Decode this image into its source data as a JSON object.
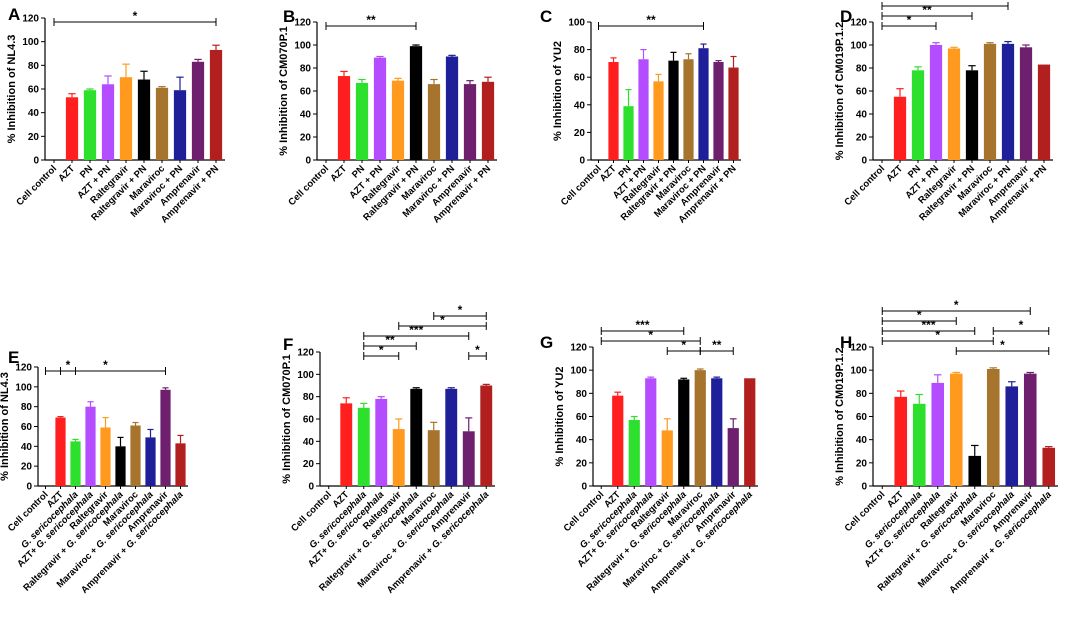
{
  "chart_data": [
    {
      "panel": "A",
      "type": "bar",
      "ylabel": "% Inhibition of NL4.3",
      "ylim": [
        0,
        120
      ],
      "yticks": [
        0,
        20,
        40,
        60,
        80,
        100,
        120
      ],
      "yticklabels": [
        "0",
        "20",
        "40",
        "60",
        "80",
        "100",
        "120"
      ],
      "categories": [
        "Cell control",
        "AZT",
        "PN",
        "AZT + PN",
        "Raltegravir",
        "Raltegravir + PN",
        "Maraviroc",
        "Maraviroc + PN",
        "Amprenavir",
        "Amprenavir + PN"
      ],
      "italic": [],
      "values": [
        0,
        53,
        59,
        64,
        70,
        68,
        61,
        59,
        83,
        93
      ],
      "errors": [
        0,
        3,
        1,
        7,
        11,
        7,
        1,
        11,
        2,
        4
      ],
      "colors": [
        "#ff1f1f",
        "#ff1f1f",
        "#2ee02e",
        "#b44cff",
        "#ff9a1f",
        "#000000",
        "#a6742c",
        "#1f1f9a",
        "#6e1f6e",
        "#b21f1f"
      ],
      "significance": [
        {
          "from": 0,
          "to": 9,
          "level": 1,
          "label": "*"
        }
      ]
    },
    {
      "panel": "B",
      "type": "bar",
      "ylabel": "% Inhibition of CM070P.1",
      "ylim": [
        0,
        120
      ],
      "yticks": [
        0,
        20,
        40,
        60,
        80,
        100,
        120
      ],
      "yticklabels": [
        "0",
        "20",
        "40",
        "60",
        "80",
        "100",
        "120"
      ],
      "categories": [
        "Cell control",
        "AZT",
        "PN",
        "AZT + PN",
        "Raltegravir",
        "Raltegravir + PN",
        "Maraviroc",
        "Maraviroc + PN",
        "Amprenavir",
        "Amprenavir + PN"
      ],
      "italic": [],
      "values": [
        0,
        73,
        67,
        89,
        69,
        99,
        66,
        90,
        66,
        68
      ],
      "errors": [
        0,
        4,
        3,
        1,
        2,
        1,
        4,
        1,
        3,
        4
      ],
      "colors": [
        "#ff1f1f",
        "#ff1f1f",
        "#2ee02e",
        "#b44cff",
        "#ff9a1f",
        "#000000",
        "#a6742c",
        "#1f1f9a",
        "#6e1f6e",
        "#b21f1f"
      ],
      "significance": [
        {
          "from": 0,
          "to": 5,
          "level": 1,
          "label": "**"
        }
      ]
    },
    {
      "panel": "C",
      "type": "bar",
      "ylabel": "% Inhibition of YU2",
      "ylim": [
        0,
        100
      ],
      "yticks": [
        0,
        20,
        40,
        60,
        80,
        100
      ],
      "yticklabels": [
        "0",
        "20",
        "40",
        "60",
        "80",
        "100"
      ],
      "categories": [
        "Cell control",
        "AZT",
        "PN",
        "AZT + PN",
        "Raltegravir",
        "Raltegravir + PN",
        "Maraviroc",
        "Maraviroc + PN",
        "Amprenavir",
        "Amprenavir + PN"
      ],
      "italic": [],
      "values": [
        0,
        71,
        39,
        73,
        57,
        72,
        73,
        81,
        71,
        67
      ],
      "errors": [
        0,
        3,
        12,
        7,
        5,
        6,
        4,
        3,
        1,
        8
      ],
      "colors": [
        "#ff1f1f",
        "#ff1f1f",
        "#2ee02e",
        "#b44cff",
        "#ff9a1f",
        "#000000",
        "#a6742c",
        "#1f1f9a",
        "#6e1f6e",
        "#b21f1f"
      ],
      "significance": [
        {
          "from": 0,
          "to": 7,
          "level": 1,
          "label": "**"
        }
      ]
    },
    {
      "panel": "D",
      "type": "bar",
      "ylabel": "% Inhibition of CM019P.1.2",
      "ylim": [
        0,
        120
      ],
      "yticks": [
        0,
        20,
        40,
        60,
        80,
        100,
        120
      ],
      "yticklabels": [
        "0",
        "20",
        "40",
        "60",
        "80",
        "100",
        "120"
      ],
      "categories": [
        "Cell control",
        "AZT",
        "PN",
        "AZT + PN",
        "Raltegravir",
        "Raltegravir + PN",
        "Maraviroc",
        "Maraviroc + PN",
        "Amprenavir",
        "Amprenavir + PN"
      ],
      "italic": [],
      "values": [
        0,
        55,
        78,
        100,
        97,
        78,
        101,
        101,
        98,
        83
      ],
      "errors": [
        0,
        7,
        3,
        2,
        1,
        4,
        1,
        2,
        2,
        0
      ],
      "colors": [
        "#ff1f1f",
        "#ff1f1f",
        "#2ee02e",
        "#b44cff",
        "#ff9a1f",
        "#000000",
        "#a6742c",
        "#1f1f9a",
        "#6e1f6e",
        "#b21f1f"
      ],
      "significance": [
        {
          "from": 0,
          "to": 3,
          "level": 1,
          "label": "*"
        },
        {
          "from": 0,
          "to": 5,
          "level": 2,
          "label": "**"
        },
        {
          "from": 0,
          "to": 7,
          "level": 3,
          "label": "*"
        }
      ]
    },
    {
      "panel": "E",
      "type": "bar",
      "ylabel": "% Inhibition of NL4.3",
      "ylim": [
        0,
        120
      ],
      "yticks": [
        0,
        20,
        40,
        60,
        80,
        100,
        120
      ],
      "yticklabels": [
        "0",
        "20",
        "40",
        "60",
        "80",
        "100",
        "120"
      ],
      "categories": [
        "Cell control",
        "AZT",
        "G. sericocephala",
        "AZT+ G. sericocephala",
        "Raltegravir",
        "Raltegravir + G. sericocephala",
        "Maraviroc",
        "Maraviroc + G. sericocephala",
        "Amprenavir",
        "Amprenavir + G. sericocephala"
      ],
      "italic": [
        "G. sericocephala"
      ],
      "values": [
        0,
        69,
        45,
        80,
        59,
        40,
        61,
        49,
        97,
        43
      ],
      "errors": [
        0,
        1,
        2,
        5,
        10,
        9,
        3,
        8,
        2,
        8
      ],
      "colors": [
        "#ff1f1f",
        "#ff1f1f",
        "#2ee02e",
        "#b44cff",
        "#ff9a1f",
        "#000000",
        "#a6742c",
        "#1f1f9a",
        "#6e1f6e",
        "#b21f1f"
      ],
      "significance": [
        {
          "from": 1,
          "to": 2,
          "level": 1,
          "label": "*"
        },
        {
          "from": 0,
          "to": 8,
          "level": 1,
          "label": "*"
        }
      ]
    },
    {
      "panel": "F",
      "type": "bar",
      "ylabel": "% Inhibition of CM070P.1",
      "ylim": [
        0,
        120
      ],
      "yticks": [
        0,
        20,
        40,
        60,
        80,
        100,
        120
      ],
      "yticklabels": [
        "0",
        "20",
        "40",
        "60",
        "80",
        "100",
        "120"
      ],
      "categories": [
        "Cell control",
        "AZT",
        "G. sericocephala",
        "AZT+ G. sericocephala",
        "Raltegravir",
        "Raltegravir + G. sericocephala",
        "Maraviroc",
        "Maraviroc + G. sericocephala",
        "Amprenavir",
        "Amprenavir + G. sericocephala"
      ],
      "italic": [
        "G. sericocephala"
      ],
      "values": [
        0,
        74,
        70,
        78,
        51,
        87,
        50,
        87,
        49,
        90
      ],
      "errors": [
        0,
        5,
        4,
        2,
        9,
        1,
        7,
        1,
        12,
        1
      ],
      "colors": [
        "#ff1f1f",
        "#ff1f1f",
        "#2ee02e",
        "#b44cff",
        "#ff9a1f",
        "#000000",
        "#a6742c",
        "#1f1f9a",
        "#6e1f6e",
        "#b21f1f"
      ],
      "significance": [
        {
          "from": 2,
          "to": 4,
          "level": 1,
          "label": "*"
        },
        {
          "from": 2,
          "to": 5,
          "level": 2,
          "label": "**"
        },
        {
          "from": 2,
          "to": 8,
          "level": 3,
          "label": "***"
        },
        {
          "from": 4,
          "to": 9,
          "level": 4,
          "label": "*"
        },
        {
          "from": 6,
          "to": 9,
          "level": 5,
          "label": "*"
        },
        {
          "from": 8,
          "to": 9,
          "level": 1,
          "label": "*"
        }
      ]
    },
    {
      "panel": "G",
      "type": "bar",
      "ylabel": "% Inhibition of YU2",
      "ylim": [
        0,
        120
      ],
      "yticks": [
        0,
        20,
        40,
        60,
        80,
        100,
        120
      ],
      "yticklabels": [
        "0",
        "20",
        "40",
        "60",
        "80",
        "100",
        "120"
      ],
      "categories": [
        "Cell control",
        "AZT",
        "G. sericocephala",
        "AZT+ G. sericocephala",
        "Raltegravir",
        "Raltegravir + G. sericocephala",
        "Maraviroc",
        "Maraviroc + G. sericocephala",
        "Amprenavir",
        "Amprenavir + G. sericocephala"
      ],
      "italic": [
        "G. sericocephala"
      ],
      "values": [
        0,
        78,
        57,
        93,
        48,
        92,
        100,
        93,
        50,
        93
      ],
      "errors": [
        0,
        3,
        3,
        1,
        10,
        1,
        1,
        1,
        8,
        0
      ],
      "colors": [
        "#ff1f1f",
        "#ff1f1f",
        "#2ee02e",
        "#b44cff",
        "#ff9a1f",
        "#000000",
        "#a6742c",
        "#1f1f9a",
        "#6e1f6e",
        "#b21f1f"
      ],
      "significance": [
        {
          "from": 4,
          "to": 6,
          "level": 1,
          "label": "*"
        },
        {
          "from": 6,
          "to": 8,
          "level": 1,
          "label": "**"
        },
        {
          "from": 0,
          "to": 6,
          "level": 2,
          "label": "*"
        },
        {
          "from": 0,
          "to": 5,
          "level": 3,
          "label": "***"
        }
      ]
    },
    {
      "panel": "H",
      "type": "bar",
      "ylabel": "% Inhibition of CM019P.1.2",
      "ylim": [
        0,
        120
      ],
      "yticks": [
        0,
        20,
        40,
        60,
        80,
        100,
        120
      ],
      "yticklabels": [
        "0",
        "20",
        "40",
        "60",
        "80",
        "100",
        "120"
      ],
      "categories": [
        "Cell control",
        "AZT",
        "G. sericocephala",
        "AZT+ G. sericocephala",
        "Raltegravir",
        "Raltegravir + G. sericocephala",
        "Maraviroc",
        "Maraviroc + G. sericocephala",
        "Amprenavir",
        "Amprenavir + G. sericocephala"
      ],
      "italic": [
        "G. sericocephala"
      ],
      "values": [
        0,
        77,
        71,
        89,
        97,
        26,
        101,
        86,
        97,
        33
      ],
      "errors": [
        0,
        5,
        8,
        7,
        1,
        9,
        1,
        4,
        1,
        1
      ],
      "colors": [
        "#ff1f1f",
        "#ff1f1f",
        "#2ee02e",
        "#b44cff",
        "#ff9a1f",
        "#000000",
        "#a6742c",
        "#1f1f9a",
        "#6e1f6e",
        "#b21f1f"
      ],
      "significance": [
        {
          "from": 4,
          "to": 9,
          "level": 1,
          "label": "*"
        },
        {
          "from": 0,
          "to": 6,
          "level": 2,
          "label": "*"
        },
        {
          "from": 0,
          "to": 5,
          "level": 3,
          "label": "***"
        },
        {
          "from": 6,
          "to": 9,
          "level": 3,
          "label": "*"
        },
        {
          "from": 0,
          "to": 4,
          "level": 4,
          "label": "*"
        },
        {
          "from": 0,
          "to": 8,
          "level": 5,
          "label": "*"
        }
      ]
    }
  ]
}
